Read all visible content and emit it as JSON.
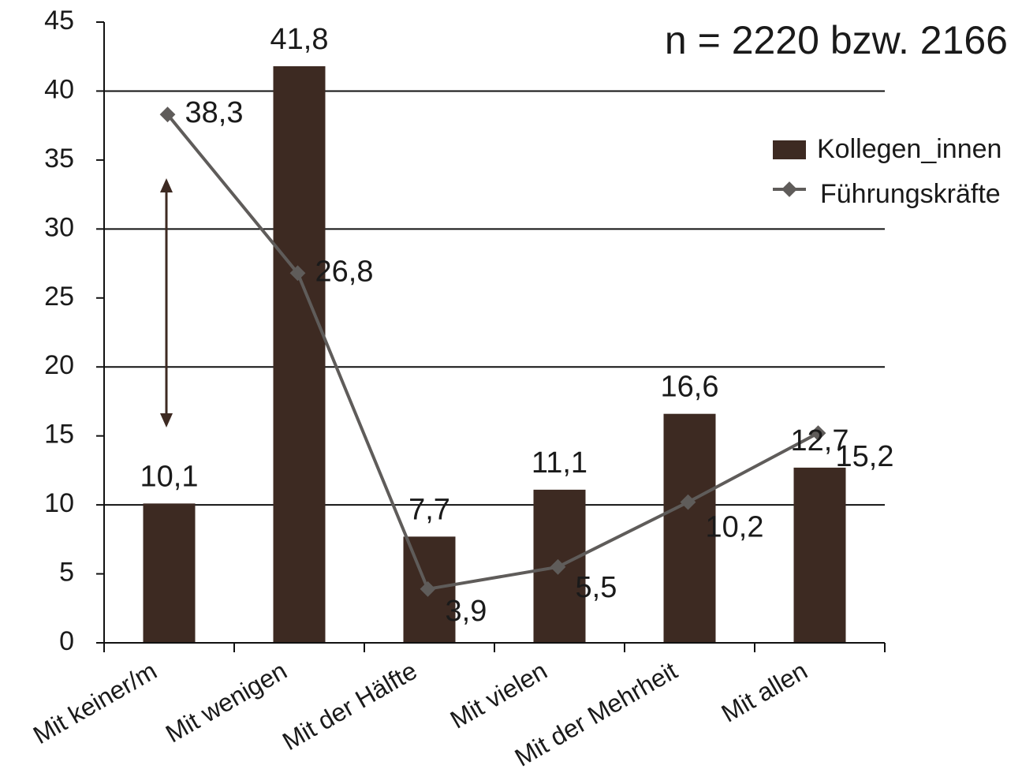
{
  "note": "n = 2220 bzw. 2166",
  "colors": {
    "bar": "#3d2a22",
    "line": "#5f5c5a",
    "grid": "#111111",
    "arrow": "#3d2a22"
  },
  "chart_data": {
    "type": "bar",
    "categories": [
      "Mit keiner/m",
      "Mit wenigen",
      "Mit der Hälfte",
      "Mit vielen",
      "Mit der Mehrheit",
      "Mit allen"
    ],
    "series": [
      {
        "name": "Kollegen_innen",
        "type": "bar",
        "values": [
          10.1,
          41.8,
          7.7,
          11.1,
          16.6,
          12.7
        ],
        "labels": [
          "10,1",
          "41,8",
          "7,7",
          "11,1",
          "16,6",
          "12,7"
        ]
      },
      {
        "name": "Führungskräfte",
        "type": "line",
        "values": [
          38.3,
          26.8,
          3.9,
          5.5,
          10.2,
          15.2
        ],
        "labels": [
          "38,3",
          "26,8",
          "3,9",
          "5,5",
          "10,2",
          "15,2"
        ]
      }
    ],
    "yticks": [
      "0",
      "5",
      "10",
      "15",
      "20",
      "25",
      "30",
      "35",
      "40",
      "45"
    ],
    "ylim": [
      0,
      45
    ],
    "grid": "horizontal at 10, 20, 30, 40",
    "legend_position": "top-right"
  }
}
